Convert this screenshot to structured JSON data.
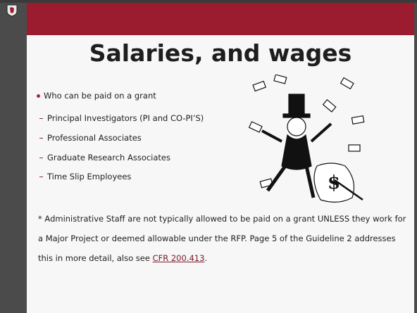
{
  "title": "Salaries, and wages",
  "bullet": "Who can be paid on a grant",
  "subitems": [
    "Principal Investigators  (PI and CO-PI’S)",
    "Professional Associates",
    "Graduate Research Associates",
    "Time Slip Employees"
  ],
  "note": {
    "text": "* Administrative Staff are not typically allowed to be paid on a grant UNLESS they work for a Major Project or deemed allowable under the RFP.  Page 5 of the Guideline 2 addresses this in more detail, also see ",
    "link": "CFR 200.413",
    "end": "."
  }
}
